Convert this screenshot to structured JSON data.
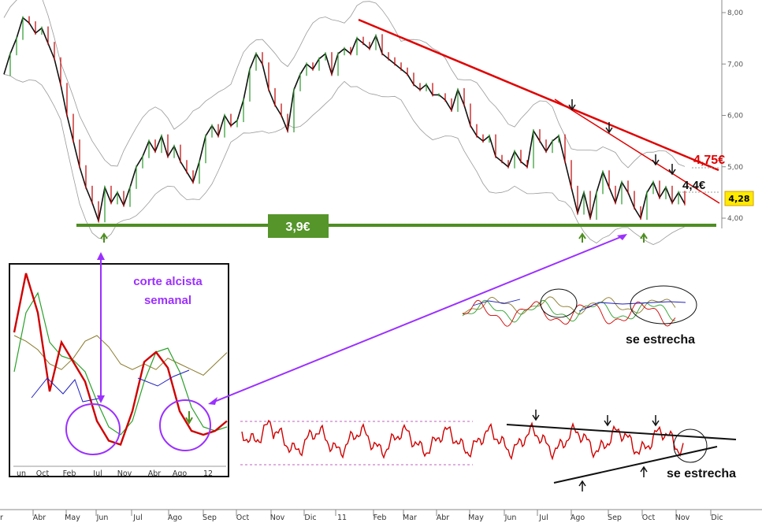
{
  "chart_data": {
    "type": "line",
    "series_note": "",
    "price_axis": {
      "ticks": [
        "8,00",
        "7,00",
        "6,00",
        "5,00",
        "4,00"
      ],
      "tick_values": [
        8.0,
        7.0,
        6.0,
        5.0,
        4.0
      ],
      "range": [
        3.7,
        8.2
      ],
      "last_value_label": "4,28",
      "last_value": 4.28
    },
    "timeline": {
      "labels": [
        "r",
        "Abr",
        "May",
        "Jun",
        "Jul",
        "Ago",
        "Sep",
        "Oct",
        "Nov",
        "Dic",
        "11",
        "Feb",
        "Mar",
        "Abr",
        "May",
        "Jun",
        "Jul",
        "Ago",
        "Sep",
        "Oct",
        "Nov",
        "Dic"
      ]
    },
    "price_series": {
      "t": [
        0,
        8,
        16,
        24,
        32,
        40,
        48,
        56,
        64,
        72,
        80,
        88,
        96,
        104,
        112,
        120,
        128,
        136,
        144,
        152,
        160,
        168,
        176,
        184,
        192,
        200,
        208,
        216,
        224,
        232,
        240,
        248,
        256,
        264,
        272,
        280,
        288,
        296,
        304,
        312,
        320,
        328,
        336,
        344,
        352,
        360,
        368,
        376,
        384,
        392,
        400,
        408,
        416,
        424,
        432,
        440,
        448,
        456,
        464,
        472,
        480,
        488,
        496,
        504,
        512,
        520,
        528,
        536,
        544,
        552,
        560,
        568,
        576,
        584,
        592,
        600,
        608,
        616,
        624,
        632,
        640,
        648,
        656,
        664,
        672,
        680,
        688,
        696,
        704,
        712,
        720,
        728,
        736,
        744,
        752,
        760,
        768,
        776,
        784,
        792,
        800,
        808,
        816,
        824,
        832,
        840,
        848,
        856,
        864
      ],
      "close": [
        6.8,
        7.2,
        7.5,
        7.9,
        7.8,
        7.6,
        7.7,
        7.4,
        7.1,
        6.6,
        6.0,
        5.5,
        5.0,
        4.6,
        4.3,
        3.95,
        4.6,
        4.3,
        4.5,
        4.25,
        4.6,
        5.0,
        5.2,
        5.5,
        5.3,
        5.6,
        5.2,
        5.4,
        5.1,
        4.9,
        4.7,
        5.1,
        5.6,
        5.8,
        5.6,
        6.0,
        5.8,
        5.9,
        6.3,
        6.9,
        7.2,
        7.0,
        6.5,
        6.2,
        6.0,
        5.7,
        6.5,
        6.8,
        7.0,
        6.9,
        7.1,
        7.2,
        6.8,
        7.2,
        7.3,
        7.2,
        7.5,
        7.4,
        7.3,
        7.55,
        7.2,
        7.1,
        7.0,
        6.9,
        6.8,
        6.6,
        6.5,
        6.6,
        6.4,
        6.4,
        6.3,
        6.1,
        6.5,
        6.2,
        5.8,
        5.6,
        5.5,
        5.6,
        5.2,
        5.1,
        5.0,
        5.3,
        5.1,
        5.0,
        5.7,
        5.5,
        5.3,
        5.5,
        5.6,
        5.1,
        4.6,
        4.1,
        4.5,
        4.0,
        4.5,
        4.9,
        4.6,
        4.3,
        4.7,
        4.5,
        4.2,
        4.0,
        4.5,
        4.7,
        4.4,
        4.6,
        4.3,
        4.5,
        4.28
      ]
    },
    "support": {
      "label": "3,9€",
      "value": 3.9
    },
    "resistance": [
      {
        "label": "4,75€",
        "value": 4.75
      },
      {
        "label": "4,4€",
        "value": 4.4
      }
    ],
    "annotations": {
      "inset_label": [
        "corte alcista",
        "semanal"
      ],
      "osc_label": "se estrecha",
      "rsi_label": "se estrecha"
    },
    "inset": {
      "x_labels": [
        "un",
        "Oct",
        "Feb",
        "Jul",
        "Nov",
        "Abr",
        "Ago",
        "12"
      ],
      "fast": [
        60,
        90,
        70,
        30,
        55,
        45,
        35,
        15,
        5,
        3,
        20,
        45,
        50,
        42,
        20,
        10,
        8,
        10,
        15
      ],
      "slow": [
        40,
        70,
        80,
        55,
        48,
        46,
        40,
        25,
        12,
        8,
        15,
        35,
        50,
        52,
        40,
        22,
        12,
        10,
        12
      ],
      "signal": [
        40,
        38,
        35,
        30,
        28,
        32,
        38,
        40,
        36,
        30,
        28,
        30,
        28,
        32,
        30,
        28,
        26,
        30,
        34
      ]
    },
    "colors": {
      "price": "#111111",
      "band": "#9a9a9a",
      "trend": "#e00000",
      "support": "#4e8e21",
      "label_box": "#55952a",
      "arrow": "#9b30ff",
      "value_tag": "#ffea00"
    }
  }
}
